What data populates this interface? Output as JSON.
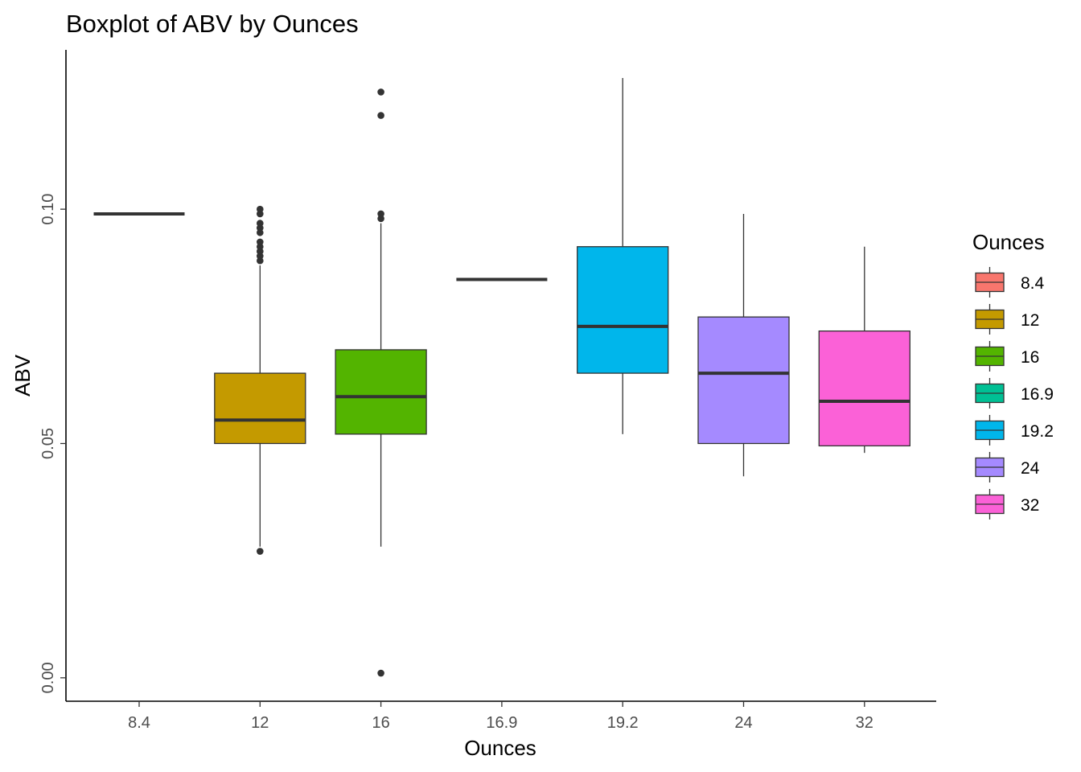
{
  "chart_data": {
    "type": "boxplot",
    "title": "Boxplot of ABV by Ounces",
    "xlabel": "Ounces",
    "ylabel": "ABV",
    "ylim": [
      -0.005,
      0.134
    ],
    "yticks": [
      0.0,
      0.05,
      0.1
    ],
    "ytick_labels": [
      "0.00",
      "0.05",
      "0.10"
    ],
    "categories": [
      "8.4",
      "12",
      "16",
      "16.9",
      "19.2",
      "24",
      "32"
    ],
    "boxes": [
      {
        "category": "8.4",
        "min": 0.099,
        "q1": 0.099,
        "median": 0.099,
        "q3": 0.099,
        "max": 0.099,
        "outliers": [],
        "color": "#F8766D"
      },
      {
        "category": "12",
        "min": 0.028,
        "q1": 0.05,
        "median": 0.055,
        "q3": 0.065,
        "max": 0.088,
        "outliers": [
          0.027,
          0.089,
          0.09,
          0.091,
          0.092,
          0.093,
          0.095,
          0.096,
          0.097,
          0.099,
          0.1
        ],
        "color": "#C49A00"
      },
      {
        "category": "16",
        "min": 0.028,
        "q1": 0.052,
        "median": 0.06,
        "q3": 0.07,
        "max": 0.097,
        "outliers": [
          0.001,
          0.098,
          0.099,
          0.12,
          0.125
        ],
        "color": "#53B400"
      },
      {
        "category": "16.9",
        "min": 0.085,
        "q1": 0.085,
        "median": 0.085,
        "q3": 0.085,
        "max": 0.085,
        "outliers": [],
        "color": "#00C094"
      },
      {
        "category": "19.2",
        "min": 0.052,
        "q1": 0.065,
        "median": 0.075,
        "q3": 0.092,
        "max": 0.128,
        "outliers": [],
        "color": "#00B6EB"
      },
      {
        "category": "24",
        "min": 0.043,
        "q1": 0.05,
        "median": 0.065,
        "q3": 0.077,
        "max": 0.099,
        "outliers": [],
        "color": "#A58AFF"
      },
      {
        "category": "32",
        "min": 0.048,
        "q1": 0.0495,
        "median": 0.059,
        "q3": 0.074,
        "max": 0.092,
        "outliers": [],
        "color": "#FB61D7"
      }
    ],
    "legend": {
      "title": "Ounces",
      "placement": "right",
      "items": [
        {
          "label": "8.4",
          "color": "#F8766D"
        },
        {
          "label": "12",
          "color": "#C49A00"
        },
        {
          "label": "16",
          "color": "#53B400"
        },
        {
          "label": "16.9",
          "color": "#00C094"
        },
        {
          "label": "19.2",
          "color": "#00B6EB"
        },
        {
          "label": "24",
          "color": "#A58AFF"
        },
        {
          "label": "32",
          "color": "#FB61D7"
        }
      ]
    },
    "grid": false
  }
}
